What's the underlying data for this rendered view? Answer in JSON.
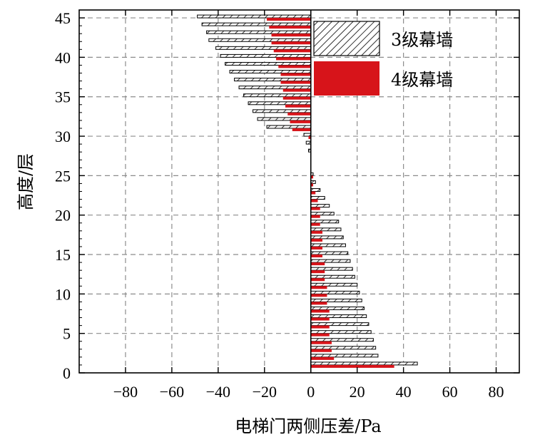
{
  "chart_data": {
    "type": "bar",
    "orientation": "horizontal",
    "xlabel": "电梯门两侧压差/Pa",
    "ylabel": "高度/层",
    "xlim": [
      -100,
      90
    ],
    "ylim": [
      0,
      46
    ],
    "x_ticks": [
      -80,
      -60,
      -40,
      -20,
      0,
      20,
      40,
      60,
      80
    ],
    "x_tick_labels": [
      "−80",
      "−60",
      "−40",
      "−20",
      "0",
      "20",
      "40",
      "60",
      "80"
    ],
    "y_ticks": [
      0,
      5,
      10,
      15,
      20,
      25,
      30,
      35,
      40,
      45
    ],
    "y_tick_labels": [
      "0",
      "5",
      "10",
      "15",
      "20",
      "25",
      "30",
      "35",
      "40",
      "45"
    ],
    "grid": true,
    "legend_position": "top-right",
    "floors": [
      1,
      2,
      3,
      4,
      5,
      6,
      7,
      8,
      9,
      10,
      11,
      12,
      13,
      14,
      15,
      16,
      17,
      18,
      19,
      20,
      21,
      22,
      23,
      24,
      25,
      26,
      27,
      28,
      29,
      30,
      31,
      32,
      33,
      34,
      35,
      36,
      37,
      38,
      39,
      40,
      41,
      42,
      43,
      44,
      45
    ],
    "series": [
      {
        "name": "3级幕墙",
        "pattern": "hatch",
        "color": "#000000",
        "values": [
          46,
          29,
          28,
          27,
          26,
          25,
          24,
          23,
          22,
          21,
          20,
          19,
          18,
          17,
          16,
          15,
          14,
          13,
          12,
          10,
          8,
          6,
          4,
          2,
          1,
          0,
          0,
          -1,
          -2,
          -3,
          -19,
          -23,
          -25,
          -27,
          -29,
          -31,
          -33,
          -35,
          -37,
          -39,
          -41,
          -44,
          -45,
          -47,
          -49
        ]
      },
      {
        "name": "4级幕墙",
        "pattern": "solid",
        "color": "#d7141a",
        "values": [
          36,
          10,
          9,
          9,
          8,
          8,
          8,
          8,
          7,
          7,
          7,
          6,
          6,
          6,
          5,
          5,
          5,
          5,
          4,
          4,
          4,
          3,
          2,
          1,
          1,
          0,
          0,
          0,
          0,
          -1,
          -8,
          -9,
          -10,
          -11,
          -12,
          -12,
          -13,
          -13,
          -14,
          -15,
          -16,
          -17,
          -17,
          -18,
          -19
        ]
      }
    ]
  }
}
